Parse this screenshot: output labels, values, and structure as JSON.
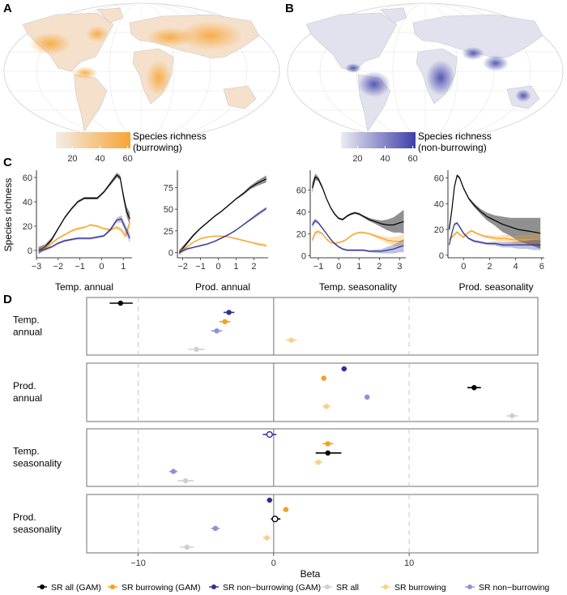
{
  "colors": {
    "black": "#000000",
    "orange": "#F5A01F",
    "navy": "#2E3192",
    "grey_light": "#CFCFCF",
    "orange_light": "#F9D08A",
    "blue_light": "#8D92D3",
    "map_orange": "#F7A434",
    "map_blue": "#3D3FA6"
  },
  "panels": {
    "A": {
      "letter": "A",
      "colorbar_ticks": [
        "20",
        "40",
        "60"
      ],
      "colorbar_title_1": "Species richness",
      "colorbar_title_2": "(burrowing)"
    },
    "B": {
      "letter": "B",
      "colorbar_ticks": [
        "20",
        "40",
        "60"
      ],
      "colorbar_title_1": "Species richness",
      "colorbar_title_2": "(non-burrowing)"
    },
    "C": {
      "letter": "C",
      "ylabel": "Species richness"
    },
    "D": {
      "letter": "D",
      "xlabel": "Beta"
    }
  },
  "chart_data": [
    {
      "type": "line",
      "panel": "C1",
      "xlabel": "Temp. annual",
      "ylabel": "Species richness",
      "xlim": [
        -3,
        1.4
      ],
      "ylim": [
        -6,
        66
      ],
      "xticks": [
        -3,
        -2,
        -1,
        0,
        1
      ],
      "yticks": [
        0,
        20,
        40,
        60
      ],
      "series": [
        {
          "key": "black",
          "x": [
            -2.9,
            -2.6,
            -2.3,
            -2.0,
            -1.7,
            -1.4,
            -1.1,
            -0.8,
            -0.5,
            -0.2,
            0.1,
            0.4,
            0.7,
            0.85,
            1.0,
            1.15,
            1.3
          ],
          "y": [
            0,
            3,
            9,
            18,
            27,
            34,
            40,
            43,
            43,
            43,
            48,
            55,
            62,
            60,
            45,
            32,
            26
          ],
          "band": [
            3,
            2,
            1.5,
            1,
            1,
            1,
            1,
            1,
            1,
            1,
            1,
            1.5,
            2,
            2,
            3,
            4,
            5
          ]
        },
        {
          "key": "orange",
          "x": [
            -2.9,
            -2.6,
            -2.3,
            -2.0,
            -1.7,
            -1.4,
            -1.1,
            -0.8,
            -0.5,
            -0.2,
            0.1,
            0.4,
            0.7,
            0.9,
            1.1,
            1.3
          ],
          "y": [
            0,
            2,
            6,
            10,
            13,
            16,
            18,
            19,
            21,
            20,
            18,
            17,
            19,
            17,
            12,
            23
          ],
          "band": [
            2,
            1.5,
            1,
            1,
            1,
            1,
            1,
            1,
            1,
            1,
            1,
            1,
            1.5,
            2,
            3,
            4
          ]
        },
        {
          "key": "navy",
          "x": [
            -2.9,
            -2.6,
            -2.3,
            -2.0,
            -1.7,
            -1.4,
            -1.1,
            -0.8,
            -0.5,
            -0.2,
            0.1,
            0.4,
            0.7,
            0.9,
            1.1,
            1.3
          ],
          "y": [
            0,
            1,
            3,
            6,
            8,
            9,
            10,
            10,
            10,
            11,
            12,
            17,
            25,
            26,
            18,
            10
          ],
          "band": [
            2,
            1.5,
            1,
            1,
            1,
            1,
            1,
            1,
            1,
            1,
            1,
            1.5,
            2,
            3,
            3,
            4
          ]
        }
      ]
    },
    {
      "type": "line",
      "panel": "C2",
      "xlabel": "Prod. annual",
      "xlim": [
        -2.3,
        2.8
      ],
      "ylim": [
        -6,
        95
      ],
      "xticks": [
        -2,
        -1,
        0,
        1,
        2
      ],
      "yticks": [
        0,
        25,
        50,
        75
      ],
      "series": [
        {
          "key": "black",
          "x": [
            -2.2,
            -1.8,
            -1.4,
            -1.0,
            -0.6,
            -0.2,
            0.2,
            0.6,
            1.0,
            1.4,
            1.8,
            2.2,
            2.7
          ],
          "y": [
            0,
            10,
            20,
            28,
            35,
            42,
            48,
            55,
            62,
            68,
            75,
            80,
            85
          ],
          "band": [
            3,
            2,
            1.5,
            1,
            1,
            1,
            1,
            1,
            1,
            1.5,
            2,
            3,
            4
          ]
        },
        {
          "key": "orange",
          "x": [
            -2.2,
            -1.8,
            -1.4,
            -1.0,
            -0.6,
            -0.2,
            0.2,
            0.6,
            1.0,
            1.4,
            1.8,
            2.2,
            2.7
          ],
          "y": [
            0,
            6,
            12,
            16,
            18,
            19,
            19,
            18,
            16,
            14,
            12,
            10,
            8
          ],
          "band": [
            2,
            1.5,
            1,
            1,
            1,
            1,
            1,
            1,
            1,
            1,
            1,
            1.5,
            2
          ]
        },
        {
          "key": "navy",
          "x": [
            -2.2,
            -1.8,
            -1.4,
            -1.0,
            -0.6,
            -0.2,
            0.2,
            0.6,
            1.0,
            1.4,
            1.8,
            2.2,
            2.7
          ],
          "y": [
            0,
            4,
            6,
            8,
            10,
            13,
            17,
            21,
            26,
            32,
            38,
            44,
            51
          ],
          "band": [
            2,
            1.5,
            1,
            1,
            1,
            1,
            1,
            1,
            1,
            1,
            1.5,
            2,
            2
          ]
        }
      ]
    },
    {
      "type": "line",
      "panel": "C3",
      "xlabel": "Temp. seasonality",
      "xlim": [
        -1.4,
        3.3
      ],
      "ylim": [
        -2,
        78
      ],
      "xticks": [
        -1,
        0,
        1,
        2,
        3
      ],
      "yticks": [
        0,
        20,
        40,
        60
      ],
      "series": [
        {
          "key": "black",
          "x": [
            -1.3,
            -1.15,
            -1.0,
            -0.8,
            -0.6,
            -0.4,
            -0.2,
            0.0,
            0.2,
            0.4,
            0.6,
            0.8,
            1.0,
            1.2,
            1.5,
            1.8,
            2.1,
            2.4,
            2.7,
            3.0,
            3.2
          ],
          "y": [
            62,
            72,
            70,
            62,
            52,
            44,
            38,
            34,
            33,
            36,
            38,
            39,
            38,
            36,
            33,
            31,
            29,
            28,
            28,
            30,
            31
          ],
          "band": [
            5,
            3,
            2,
            1.5,
            1,
            1,
            1,
            1,
            1,
            1,
            1,
            1,
            1,
            1,
            1.5,
            2,
            3,
            5,
            7,
            9,
            11
          ]
        },
        {
          "key": "orange",
          "x": [
            -1.3,
            -1.15,
            -1.0,
            -0.8,
            -0.6,
            -0.4,
            -0.2,
            0.0,
            0.2,
            0.4,
            0.6,
            0.8,
            1.0,
            1.2,
            1.5,
            1.8,
            2.1,
            2.4,
            2.7,
            3.0,
            3.2
          ],
          "y": [
            14,
            21,
            22,
            20,
            15,
            12,
            11,
            12,
            13,
            15,
            18,
            20,
            21,
            21,
            20,
            18,
            16,
            14,
            13,
            13,
            14
          ],
          "band": [
            3,
            2,
            1.5,
            1,
            1,
            1,
            1,
            1,
            1,
            1,
            1,
            1,
            1,
            1,
            1,
            1.5,
            2,
            3,
            4,
            5,
            6
          ]
        },
        {
          "key": "navy",
          "x": [
            -1.3,
            -1.15,
            -1.0,
            -0.8,
            -0.6,
            -0.4,
            -0.2,
            0.0,
            0.2,
            0.4,
            0.6,
            0.8,
            1.0,
            1.2,
            1.5,
            1.8,
            2.1,
            2.4,
            2.7,
            3.0,
            3.2
          ],
          "y": [
            28,
            32,
            30,
            25,
            20,
            15,
            11,
            8,
            6,
            5,
            5,
            5,
            5,
            5,
            4,
            4,
            4,
            5,
            6,
            8,
            9
          ],
          "band": [
            3,
            2,
            1.5,
            1,
            1,
            1,
            1,
            1,
            1,
            1,
            1,
            1,
            1,
            1,
            1,
            1.5,
            2,
            3,
            4,
            5,
            6
          ]
        }
      ]
    },
    {
      "type": "line",
      "panel": "C4",
      "xlabel": "Prod. seasonality",
      "xlim": [
        -1.2,
        6.2
      ],
      "ylim": [
        -2,
        66
      ],
      "xticks": [
        0,
        2,
        4,
        6
      ],
      "yticks": [
        0,
        20,
        40,
        60
      ],
      "series": [
        {
          "key": "black",
          "x": [
            -1.1,
            -0.9,
            -0.7,
            -0.5,
            -0.3,
            0.0,
            0.4,
            0.8,
            1.3,
            1.8,
            2.4,
            3.0,
            3.6,
            4.2,
            4.8,
            5.4,
            5.9
          ],
          "y": [
            20,
            35,
            53,
            62,
            60,
            52,
            44,
            39,
            34,
            30,
            27,
            24,
            22,
            20,
            19,
            18,
            17
          ],
          "band": [
            3,
            2,
            1.5,
            1,
            1,
            1,
            1,
            1.5,
            2,
            3,
            4,
            6,
            7,
            9,
            10,
            11,
            12
          ]
        },
        {
          "key": "orange",
          "x": [
            -1.1,
            -0.9,
            -0.7,
            -0.5,
            -0.3,
            0.0,
            0.3,
            0.6,
            1.0,
            1.5,
            2.0,
            2.6,
            3.2,
            3.8,
            4.4,
            5.0,
            5.9
          ],
          "y": [
            12,
            14,
            16,
            18,
            16,
            14,
            17,
            19,
            17,
            15,
            14,
            13,
            13,
            12,
            12,
            12,
            12
          ],
          "band": [
            2,
            1.5,
            1,
            1,
            1,
            1,
            1,
            1,
            1,
            1,
            1.5,
            2,
            3,
            3,
            4,
            4,
            5
          ]
        },
        {
          "key": "navy",
          "x": [
            -1.1,
            -0.9,
            -0.7,
            -0.5,
            -0.3,
            0.0,
            0.4,
            0.8,
            1.3,
            1.8,
            2.4,
            3.0,
            3.6,
            4.2,
            4.8,
            5.4,
            5.9
          ],
          "y": [
            8,
            17,
            24,
            25,
            22,
            17,
            13,
            11,
            10,
            9,
            9,
            8,
            8,
            8,
            8,
            8,
            8
          ],
          "band": [
            2,
            1.5,
            1,
            1,
            1,
            1,
            1,
            1,
            1,
            1,
            1.5,
            2,
            2,
            3,
            3,
            4,
            4
          ]
        }
      ]
    },
    {
      "type": "scatter",
      "panel": "D",
      "xlabel": "Beta",
      "xlim": [
        -13.8,
        19.5
      ],
      "xticks": [
        -10,
        0,
        10
      ],
      "reference_lines": [
        -10,
        10
      ],
      "facets": [
        {
          "label_lines": [
            "Temp.",
            "annual"
          ],
          "points": [
            {
              "key": "black",
              "x": -11.3,
              "lo": -12.1,
              "hi": -10.4
            },
            {
              "key": "navy",
              "x": -3.3,
              "lo": -3.7,
              "hi": -2.9
            },
            {
              "key": "orange",
              "x": -3.6,
              "lo": -4.0,
              "hi": -3.2
            },
            {
              "key": "blue_light",
              "x": -4.2,
              "lo": -4.6,
              "hi": -3.8
            },
            {
              "key": "orange_light",
              "x": 1.3,
              "lo": 0.9,
              "hi": 1.7
            },
            {
              "key": "grey_light",
              "x": -5.7,
              "lo": -6.3,
              "hi": -5.1
            }
          ]
        },
        {
          "label_lines": [
            "Prod.",
            "annual"
          ],
          "points": [
            {
              "key": "navy",
              "x": 5.2,
              "lo": 5.0,
              "hi": 5.4
            },
            {
              "key": "orange",
              "x": 3.7,
              "lo": 3.5,
              "hi": 3.9
            },
            {
              "key": "black",
              "x": 14.8,
              "lo": 14.3,
              "hi": 15.3
            },
            {
              "key": "blue_light",
              "x": 6.9,
              "lo": 6.7,
              "hi": 7.1
            },
            {
              "key": "orange_light",
              "x": 3.9,
              "lo": 3.6,
              "hi": 4.2
            },
            {
              "key": "grey_light",
              "x": 17.6,
              "lo": 17.2,
              "hi": 18.0
            }
          ]
        },
        {
          "label_lines": [
            "Temp.",
            "seasonality"
          ],
          "points": [
            {
              "key": "navy",
              "x": -0.3,
              "lo": -0.8,
              "hi": 0.2,
              "open": true
            },
            {
              "key": "orange",
              "x": 4.0,
              "lo": 3.6,
              "hi": 4.4
            },
            {
              "key": "black",
              "x": 4.0,
              "lo": 3.1,
              "hi": 5.0
            },
            {
              "key": "orange_light",
              "x": 3.3,
              "lo": 3.0,
              "hi": 3.6
            },
            {
              "key": "blue_light",
              "x": -7.4,
              "lo": -7.7,
              "hi": -7.1
            },
            {
              "key": "grey_light",
              "x": -6.5,
              "lo": -7.1,
              "hi": -5.9
            }
          ]
        },
        {
          "label_lines": [
            "Prod.",
            "seasonality"
          ],
          "points": [
            {
              "key": "navy",
              "x": -0.3,
              "lo": -0.5,
              "hi": -0.1
            },
            {
              "key": "orange",
              "x": 0.9,
              "lo": 0.7,
              "hi": 1.1
            },
            {
              "key": "black",
              "x": 0.1,
              "lo": -0.2,
              "hi": 0.5,
              "open": true
            },
            {
              "key": "blue_light",
              "x": -4.3,
              "lo": -4.6,
              "hi": -4.0
            },
            {
              "key": "orange_light",
              "x": -0.5,
              "lo": -0.8,
              "hi": -0.2
            },
            {
              "key": "grey_light",
              "x": -6.4,
              "lo": -6.9,
              "hi": -5.9
            }
          ]
        }
      ]
    }
  ],
  "legend": [
    {
      "key": "black",
      "label": "SR all (GAM)"
    },
    {
      "key": "orange",
      "label": "SR burrowing (GAM)"
    },
    {
      "key": "navy",
      "label": "SR non−burrowing (GAM)"
    },
    {
      "key": "grey_light",
      "label": "SR all"
    },
    {
      "key": "orange_light",
      "label": "SR burrowing"
    },
    {
      "key": "blue_light",
      "label": "SR non−burrowing"
    }
  ]
}
